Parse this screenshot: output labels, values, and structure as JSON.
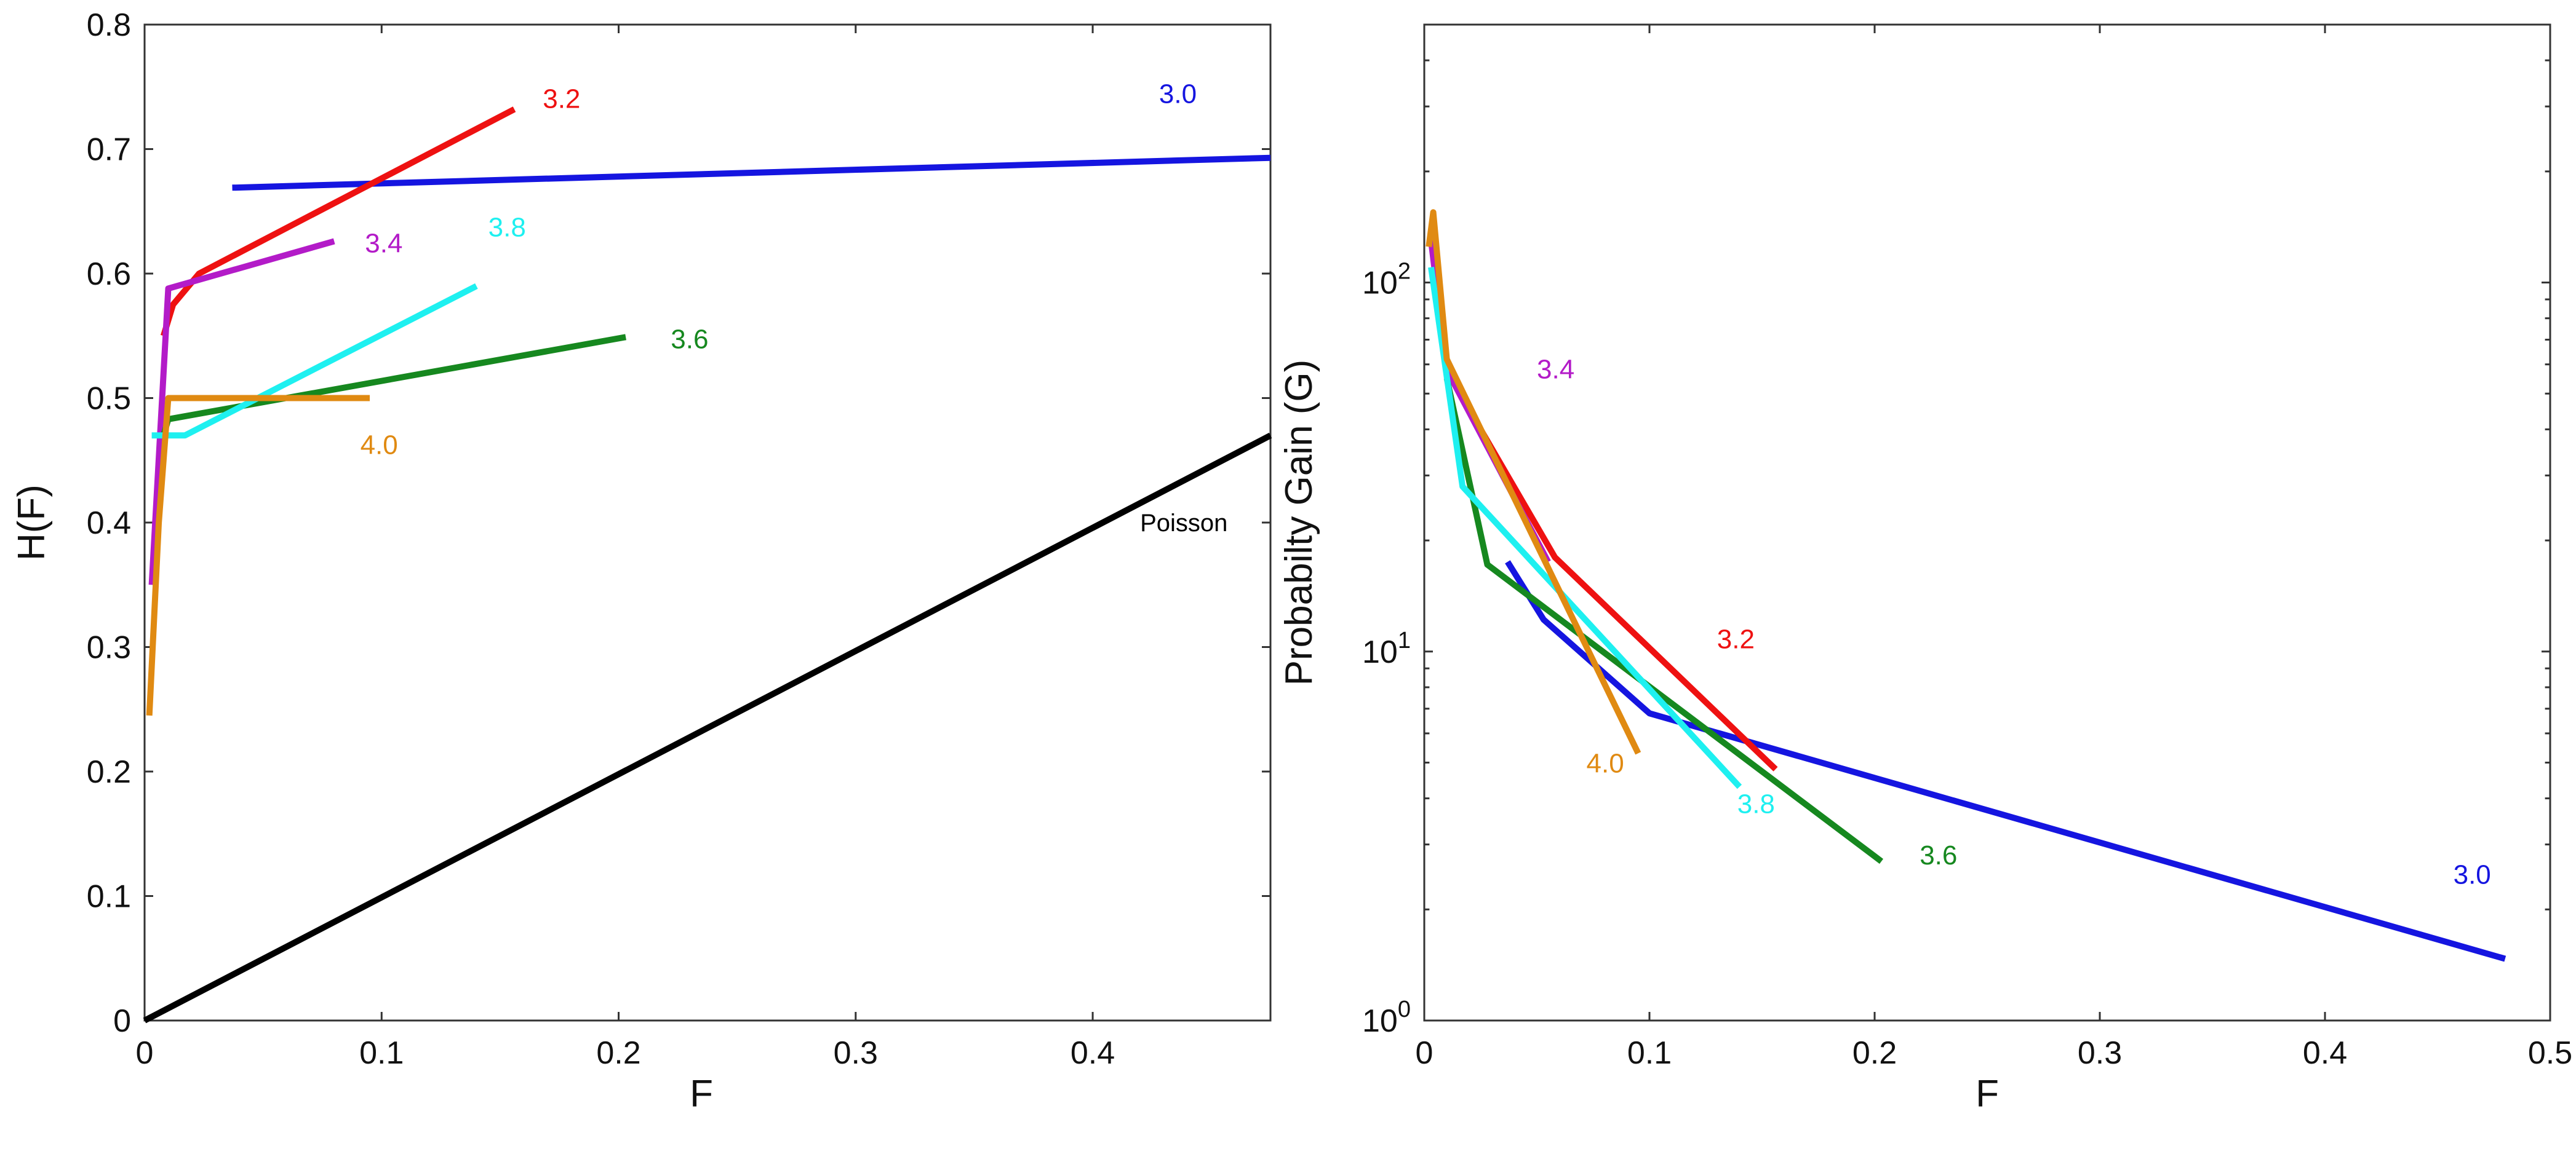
{
  "chart_data": [
    {
      "type": "line",
      "xlabel": "F",
      "ylabel": "H(F)",
      "xlim": [
        0,
        0.475
      ],
      "ylim": [
        0,
        0.8
      ],
      "x_ticks": [
        "0",
        "0.1",
        "0.2",
        "0.3",
        "0.4"
      ],
      "y_ticks": [
        "0",
        "0.1",
        "0.2",
        "0.3",
        "0.4",
        "0.5",
        "0.6",
        "0.7",
        "0.8"
      ],
      "series": [
        {
          "name": "3.0",
          "color": "#1515e0",
          "x": [
            0.037,
            0.475
          ],
          "y": [
            0.669,
            0.693
          ]
        },
        {
          "name": "3.2",
          "color": "#ee1111",
          "x": [
            0.008,
            0.012,
            0.023,
            0.156
          ],
          "y": [
            0.55,
            0.575,
            0.6,
            0.732
          ]
        },
        {
          "name": "3.4",
          "color": "#b31bc8",
          "x": [
            0.003,
            0.01,
            0.08
          ],
          "y": [
            0.35,
            0.588,
            0.626
          ]
        },
        {
          "name": "3.6",
          "color": "#16881f",
          "x": [
            0.008,
            0.01,
            0.203
          ],
          "y": [
            0.47,
            0.483,
            0.549
          ]
        },
        {
          "name": "3.8",
          "color": "#1ef0f0",
          "x": [
            0.003,
            0.017,
            0.14
          ],
          "y": [
            0.47,
            0.47,
            0.59
          ]
        },
        {
          "name": "4.0",
          "color": "#e08a12",
          "x": [
            0.002,
            0.006,
            0.01,
            0.095
          ],
          "y": [
            0.245,
            0.4,
            0.5,
            0.5
          ]
        },
        {
          "name": "Poisson",
          "color": "#000000",
          "x": [
            0,
            0.475
          ],
          "y": [
            0,
            0.47
          ]
        }
      ],
      "annotations": [
        {
          "text": "3.0",
          "color": "#1515e0",
          "x": 0.428,
          "y": 0.737
        },
        {
          "text": "3.2",
          "color": "#ee1111",
          "x": 0.168,
          "y": 0.733
        },
        {
          "text": "3.4",
          "color": "#b31bc8",
          "x": 0.093,
          "y": 0.617
        },
        {
          "text": "3.8",
          "color": "#1ef0f0",
          "x": 0.145,
          "y": 0.63
        },
        {
          "text": "3.6",
          "color": "#16881f",
          "x": 0.222,
          "y": 0.54
        },
        {
          "text": "4.0",
          "color": "#e08a12",
          "x": 0.091,
          "y": 0.455
        },
        {
          "text": "Poisson",
          "color": "#000000",
          "x": 0.42,
          "y": 0.393
        }
      ]
    },
    {
      "type": "line",
      "yscale": "log",
      "xlabel": "F",
      "ylabel": "Probabilty Gain (G)",
      "xlim": [
        0,
        0.5
      ],
      "ylim": [
        1,
        500
      ],
      "x_ticks": [
        "0",
        "0.1",
        "0.2",
        "0.3",
        "0.4",
        "0.5"
      ],
      "y_ticks": [
        {
          "base": "10",
          "exp": "0"
        },
        {
          "base": "10",
          "exp": "1"
        },
        {
          "base": "10",
          "exp": "2"
        }
      ],
      "series": [
        {
          "name": "3.0",
          "color": "#1515e0",
          "x": [
            0.037,
            0.053,
            0.1,
            0.48
          ],
          "y": [
            17.5,
            12.2,
            6.8,
            1.47
          ]
        },
        {
          "name": "3.2",
          "color": "#ee1111",
          "x": [
            0.023,
            0.058,
            0.156
          ],
          "y": [
            42,
            18,
            4.8
          ]
        },
        {
          "name": "3.4",
          "color": "#b31bc8",
          "x": [
            0.003,
            0.01,
            0.055
          ],
          "y": [
            130,
            58,
            17.5
          ]
        },
        {
          "name": "3.6",
          "color": "#16881f",
          "x": [
            0.01,
            0.028,
            0.203
          ],
          "y": [
            55,
            17.2,
            2.7
          ]
        },
        {
          "name": "3.8",
          "color": "#1ef0f0",
          "x": [
            0.003,
            0.017,
            0.14
          ],
          "y": [
            110,
            28,
            4.3
          ]
        },
        {
          "name": "4.0",
          "color": "#e08a12",
          "x": [
            0.002,
            0.004,
            0.01,
            0.095
          ],
          "y": [
            125,
            155,
            62,
            5.3
          ]
        }
      ],
      "annotations": [
        {
          "text": "3.0",
          "color": "#1515e0",
          "x": 0.457,
          "y": 2.35
        },
        {
          "text": "3.2",
          "color": "#ee1111",
          "x": 0.13,
          "y": 10.2
        },
        {
          "text": "3.4",
          "color": "#b31bc8",
          "x": 0.05,
          "y": 55
        },
        {
          "text": "3.6",
          "color": "#16881f",
          "x": 0.22,
          "y": 2.65
        },
        {
          "text": "3.8",
          "color": "#1ef0f0",
          "x": 0.139,
          "y": 3.65
        },
        {
          "text": "4.0",
          "color": "#e08a12",
          "x": 0.072,
          "y": 4.7
        }
      ]
    }
  ]
}
